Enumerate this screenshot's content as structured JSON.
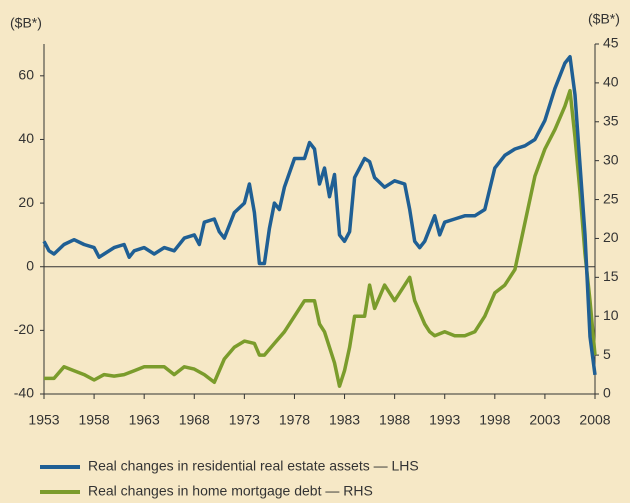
{
  "chart_data": {
    "type": "line",
    "y_label": "($B*)",
    "y2_label": "($B*)",
    "xlim": [
      1953,
      2008
    ],
    "xticks": [
      1953,
      1958,
      1963,
      1968,
      1973,
      1978,
      1983,
      1988,
      1993,
      1998,
      2003,
      2008
    ],
    "ylim": [
      -40,
      70
    ],
    "yticks": [
      -40,
      -20,
      0,
      20,
      40,
      60
    ],
    "y2lim": [
      0,
      45
    ],
    "y2ticks": [
      0,
      5,
      10,
      15,
      20,
      25,
      30,
      35,
      40,
      45
    ],
    "series": [
      {
        "name": "Real changes in residential real estate assets — LHS",
        "color": "#1f5f94",
        "x": [
          1953,
          1953.5,
          1954,
          1955,
          1956,
          1957,
          1958,
          1958.5,
          1959,
          1960,
          1961,
          1961.5,
          1962,
          1963,
          1964,
          1965,
          1966,
          1967,
          1968,
          1968.5,
          1969,
          1970,
          1970.5,
          1971,
          1972,
          1973,
          1973.5,
          1974,
          1974.5,
          1975,
          1975.5,
          1976,
          1976.5,
          1977,
          1978,
          1979,
          1979.5,
          1980,
          1980.5,
          1981,
          1981.5,
          1982,
          1982.5,
          1983,
          1983.5,
          1984,
          1985,
          1985.5,
          1986,
          1987,
          1988,
          1989,
          1989.5,
          1990,
          1990.5,
          1991,
          1992,
          1992.5,
          1993,
          1994,
          1995,
          1996,
          1997,
          1998,
          1999,
          2000,
          2001,
          2002,
          2003,
          2004,
          2005,
          2005.5,
          2006,
          2006.5,
          2007,
          2007.5,
          2008
        ],
        "values": [
          8,
          5,
          4,
          7,
          8.5,
          7,
          6,
          3,
          4,
          6,
          7,
          3,
          5,
          6,
          4,
          6,
          5,
          9,
          10,
          7,
          14,
          15,
          11,
          9,
          17,
          20,
          26,
          17,
          1,
          1,
          12,
          20,
          18,
          25,
          34,
          34,
          39,
          37,
          26,
          31,
          22,
          29,
          10,
          8,
          11,
          28,
          34,
          33,
          28,
          25,
          27,
          26,
          18,
          8,
          6,
          8,
          16,
          10,
          14,
          15,
          16,
          16,
          18,
          31,
          35,
          37,
          38,
          40,
          46,
          56,
          64,
          66,
          54,
          32,
          10,
          -22,
          -34
        ]
      },
      {
        "name": "Real changes in home mortgage debt — RHS",
        "color": "#7b9c2c",
        "axis": "y2",
        "x": [
          1953,
          1954,
          1955,
          1956,
          1957,
          1958,
          1959,
          1960,
          1961,
          1962,
          1963,
          1964,
          1965,
          1966,
          1967,
          1968,
          1969,
          1970,
          1971,
          1972,
          1973,
          1974,
          1974.5,
          1975,
          1976,
          1977,
          1978,
          1979,
          1980,
          1980.5,
          1981,
          1982,
          1982.5,
          1983,
          1983.5,
          1984,
          1985,
          1985.5,
          1986,
          1987,
          1988,
          1989,
          1989.5,
          1990,
          1991,
          1991.5,
          1992,
          1993,
          1994,
          1995,
          1996,
          1997,
          1998,
          1999,
          2000,
          2001,
          2002,
          2003,
          2004,
          2005,
          2005.5,
          2006,
          2006.5,
          2007,
          2007.5,
          2008
        ],
        "values": [
          2,
          2,
          3.5,
          3,
          2.5,
          1.8,
          2.5,
          2.3,
          2.5,
          3,
          3.5,
          3.5,
          3.5,
          2.5,
          3.5,
          3.2,
          2.5,
          1.5,
          4.5,
          6,
          6.8,
          6.5,
          5,
          5,
          6.5,
          8,
          10,
          12,
          12,
          9,
          8,
          4,
          1,
          3,
          6,
          10,
          10,
          14,
          11,
          14,
          12,
          14,
          15,
          12,
          9,
          8,
          7.5,
          8,
          7.5,
          7.5,
          8,
          10,
          13,
          14,
          16,
          22,
          28,
          31.5,
          34,
          37,
          39,
          33,
          26,
          18,
          12,
          5
        ]
      }
    ]
  }
}
